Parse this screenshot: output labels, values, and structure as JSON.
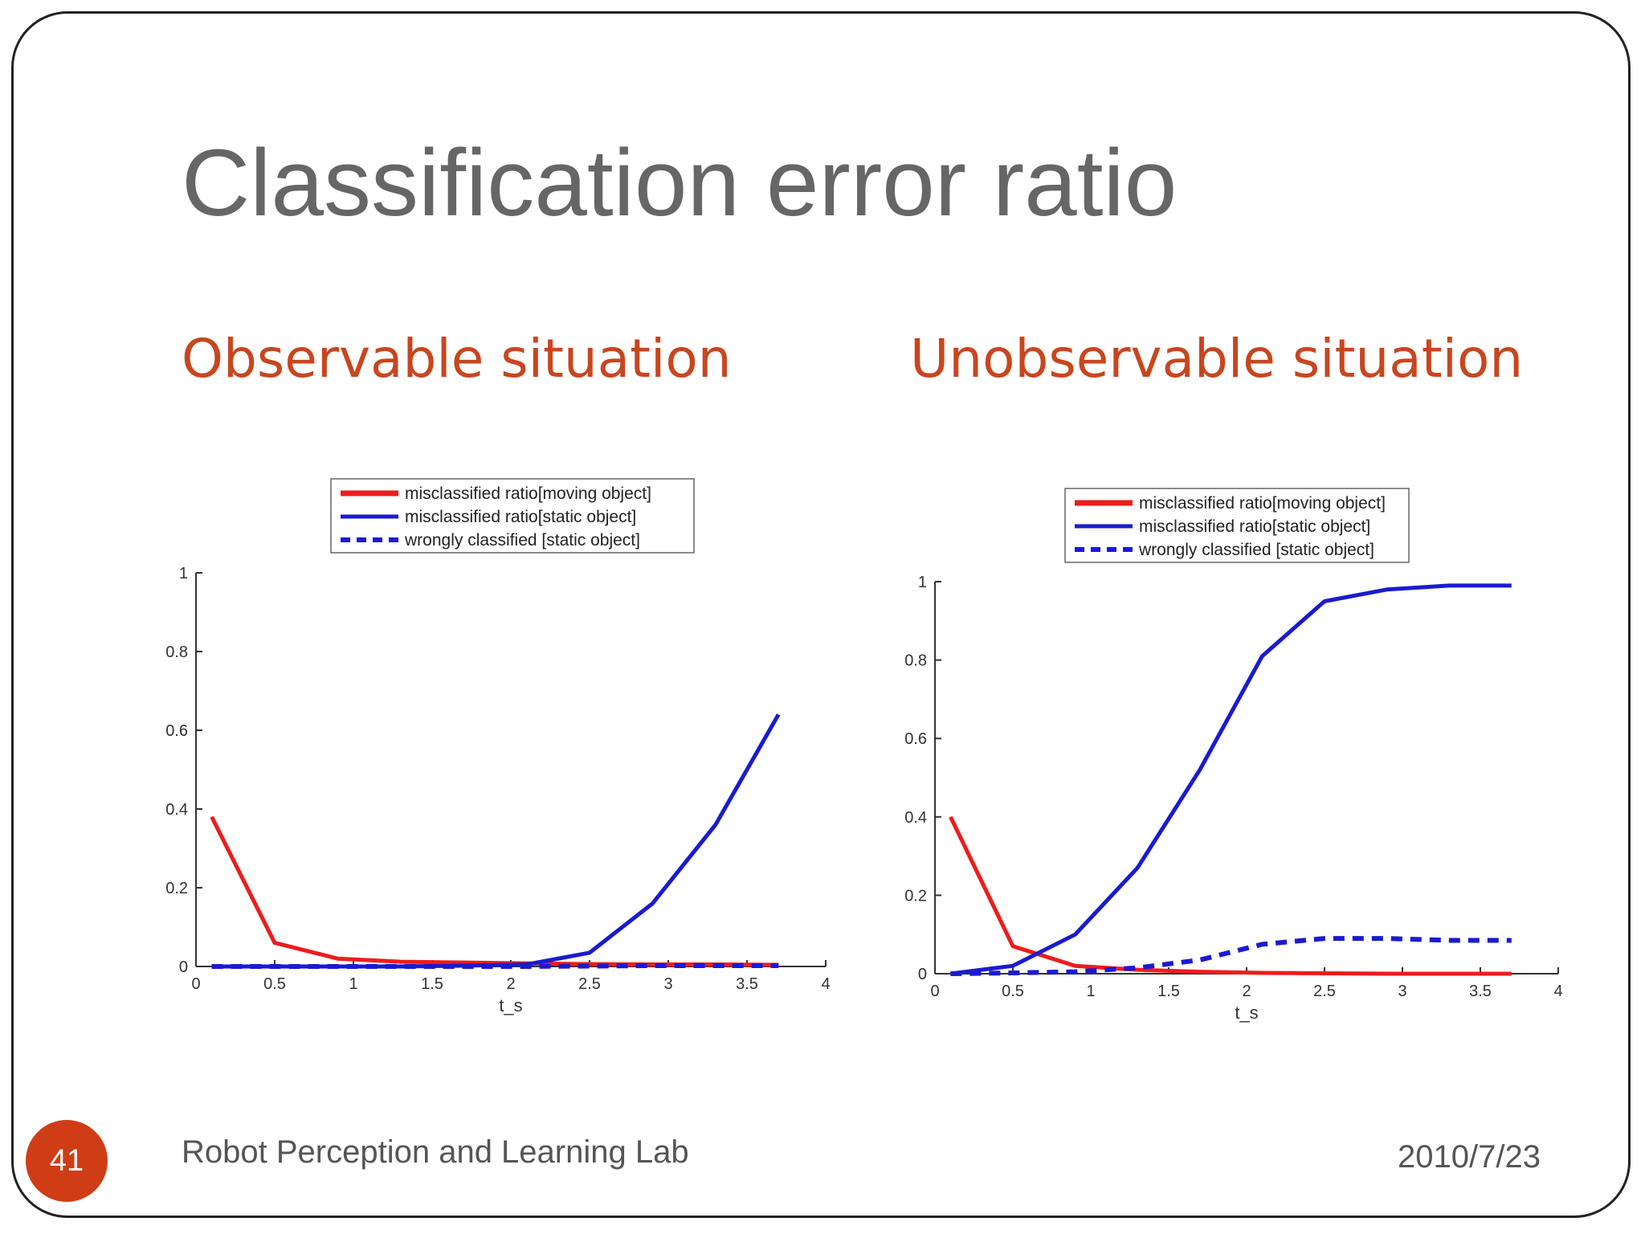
{
  "slide": {
    "title": "Classification error ratio",
    "page_number": "41",
    "footer_left": "Robot Perception and Learning Lab",
    "footer_right": "2010/7/23"
  },
  "colors": {
    "title": "#666666",
    "subtitle": "#c8461e",
    "badge": "#cf3d17",
    "red_series": "#ee1c1c",
    "blue_series": "#1a1ad2"
  },
  "chart_data": [
    {
      "type": "line",
      "title": "Observable situation",
      "xlabel": "t_s",
      "ylabel": "",
      "xlim": [
        0,
        4
      ],
      "ylim": [
        0,
        1
      ],
      "xticks": [
        "0",
        "0.5",
        "1",
        "1.5",
        "2",
        "2.5",
        "3",
        "3.5",
        "4"
      ],
      "yticks": [
        "0",
        "0.2",
        "0.4",
        "0.6",
        "0.8",
        "1"
      ],
      "legend_position": "top",
      "series": [
        {
          "name": "misclassified ratio[moving object]",
          "color": "#ee1c1c",
          "style": "solid",
          "x": [
            0.1,
            0.5,
            0.9,
            1.3,
            1.7,
            2.1,
            2.5,
            2.9,
            3.3,
            3.7
          ],
          "y": [
            0.38,
            0.06,
            0.02,
            0.012,
            0.01,
            0.008,
            0.006,
            0.005,
            0.005,
            0.004
          ]
        },
        {
          "name": "misclassified ratio[static object]",
          "color": "#1a1ad2",
          "style": "solid",
          "x": [
            0.1,
            0.5,
            0.9,
            1.3,
            1.7,
            2.1,
            2.5,
            2.9,
            3.3,
            3.7
          ],
          "y": [
            0.0,
            0.0,
            0.0,
            0.0,
            0.002,
            0.005,
            0.035,
            0.16,
            0.36,
            0.64
          ]
        },
        {
          "name": "wrongly classified [static object]",
          "color": "#1a1ad2",
          "style": "dashed",
          "x": [
            0.1,
            0.5,
            0.9,
            1.3,
            1.7,
            2.1,
            2.5,
            2.9,
            3.3,
            3.7
          ],
          "y": [
            0.0,
            0.0,
            0.0,
            0.0,
            0.0,
            0.0,
            0.001,
            0.002,
            0.002,
            0.002
          ]
        }
      ]
    },
    {
      "type": "line",
      "title": "Unobservable situation",
      "xlabel": "t_s",
      "ylabel": "",
      "xlim": [
        0,
        4
      ],
      "ylim": [
        0,
        1
      ],
      "xticks": [
        "0",
        "0.5",
        "1",
        "1.5",
        "2",
        "2.5",
        "3",
        "3.5",
        "4"
      ],
      "yticks": [
        "0",
        "0.2",
        "0.4",
        "0.6",
        "0.8",
        "1"
      ],
      "legend_position": "top",
      "series": [
        {
          "name": "misclassified ratio[moving object]",
          "color": "#ee1c1c",
          "style": "solid",
          "x": [
            0.1,
            0.5,
            0.9,
            1.3,
            1.7,
            2.1,
            2.5,
            2.9,
            3.3,
            3.7
          ],
          "y": [
            0.4,
            0.07,
            0.02,
            0.01,
            0.005,
            0.002,
            0.001,
            0.0,
            0.0,
            0.0
          ]
        },
        {
          "name": "misclassified ratio[static object]",
          "color": "#1a1ad2",
          "style": "solid",
          "x": [
            0.1,
            0.5,
            0.9,
            1.3,
            1.7,
            2.1,
            2.5,
            2.9,
            3.3,
            3.7
          ],
          "y": [
            0.0,
            0.02,
            0.1,
            0.27,
            0.52,
            0.81,
            0.95,
            0.98,
            0.99,
            0.99
          ]
        },
        {
          "name": "wrongly classified [static object]",
          "color": "#1a1ad2",
          "style": "dashed",
          "x": [
            0.1,
            0.5,
            0.9,
            1.3,
            1.7,
            2.1,
            2.5,
            2.9,
            3.3,
            3.7
          ],
          "y": [
            0.0,
            0.002,
            0.005,
            0.015,
            0.035,
            0.075,
            0.09,
            0.09,
            0.085,
            0.085
          ]
        }
      ]
    }
  ]
}
